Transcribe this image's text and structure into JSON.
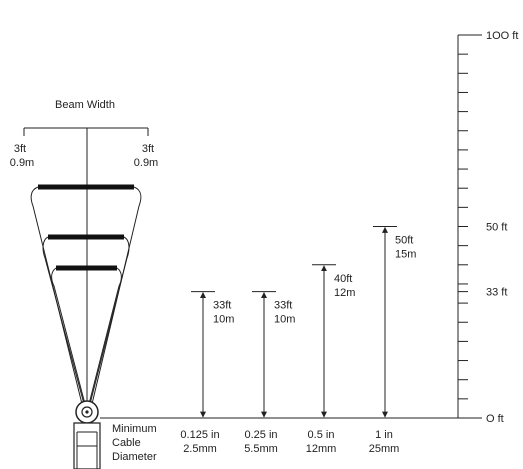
{
  "beam": {
    "title": "Beam Width",
    "left_ft": "3ft",
    "left_m": "0.9m",
    "right_ft": "3ft",
    "right_m": "0.9m"
  },
  "scale": {
    "ticks": [
      {
        "label": "1OO ft",
        "value": 100
      },
      {
        "label": "50 ft",
        "value": 50
      },
      {
        "label": "33 ft",
        "value": 33
      },
      {
        "label": "O ft",
        "value": 0
      }
    ]
  },
  "cable_label": {
    "line1": "Minimum",
    "line2": "Cable",
    "line3": "Diameter"
  },
  "ranges": [
    {
      "ft_label": "33ft",
      "m_label": "10m",
      "ft": 33,
      "diameter_in": "0.125 in",
      "diameter_mm": "2.5mm"
    },
    {
      "ft_label": "33ft",
      "m_label": "10m",
      "ft": 33,
      "diameter_in": "0.25 in",
      "diameter_mm": "5.5mm"
    },
    {
      "ft_label": "40ft",
      "m_label": "12m",
      "ft": 40,
      "diameter_in": "0.5 in",
      "diameter_mm": "12mm"
    },
    {
      "ft_label": "50ft",
      "m_label": "15m",
      "ft": 50,
      "diameter_in": "1 in",
      "diameter_mm": "25mm"
    }
  ]
}
